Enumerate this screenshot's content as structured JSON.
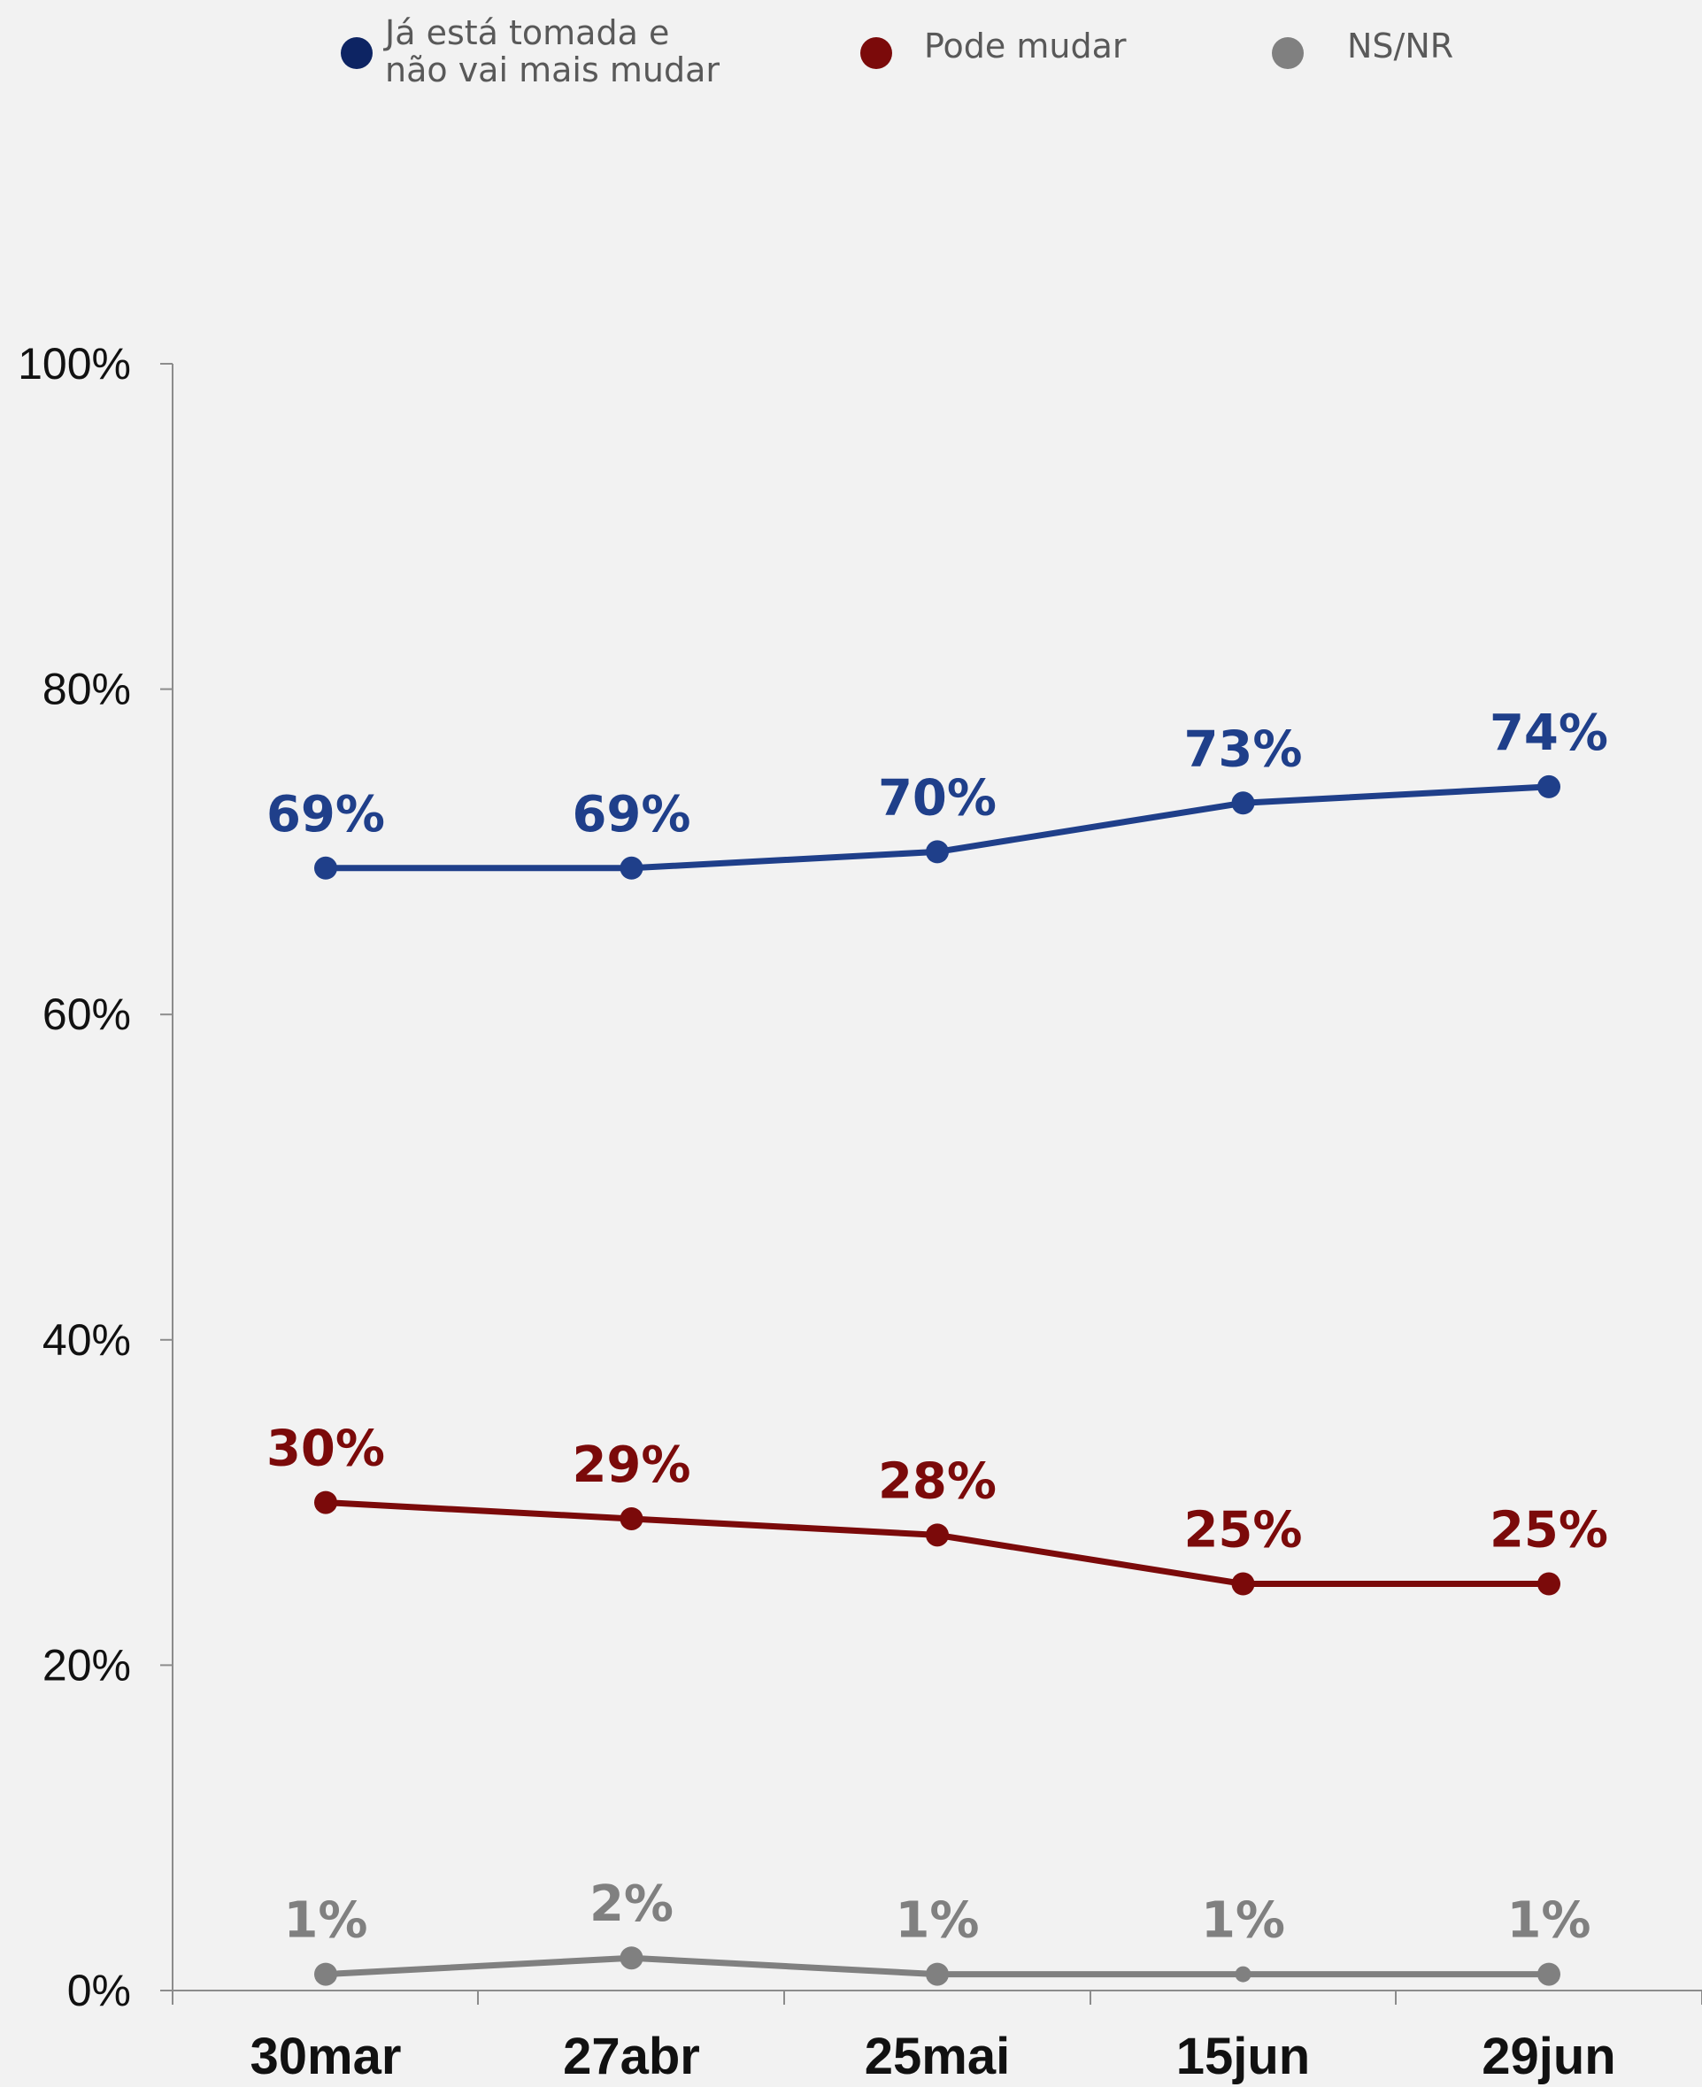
{
  "chart_data": {
    "type": "line",
    "categories": [
      "30mar",
      "27abr",
      "25mai",
      "15jun",
      "29jun"
    ],
    "series": [
      {
        "name": "Já está tomada e\nnão vai mais mudar",
        "values": [
          69,
          69,
          70,
          73,
          74
        ],
        "labels": [
          "69%",
          "69%",
          "70%",
          "73%",
          "74%"
        ],
        "color": "#1f3f8a",
        "legend_color": "#0d2463"
      },
      {
        "name": "Pode mudar",
        "values": [
          30,
          29,
          28,
          25,
          25
        ],
        "labels": [
          "30%",
          "29%",
          "28%",
          "25%",
          "25%"
        ],
        "color": "#7b0a0a",
        "legend_color": "#7b0a0a"
      },
      {
        "name": "NS/NR",
        "values": [
          1,
          2,
          1,
          1,
          1
        ],
        "labels": [
          "1%",
          "2%",
          "1%",
          "1%",
          "1%"
        ],
        "color": "#808080",
        "legend_color": "#808080"
      }
    ],
    "yticks": [
      "0%",
      "20%",
      "40%",
      "60%",
      "80%",
      "100%"
    ],
    "ylim": [
      0,
      100
    ],
    "grid": false,
    "legend_position": "top",
    "xlabel": "",
    "ylabel": "",
    "title": ""
  }
}
